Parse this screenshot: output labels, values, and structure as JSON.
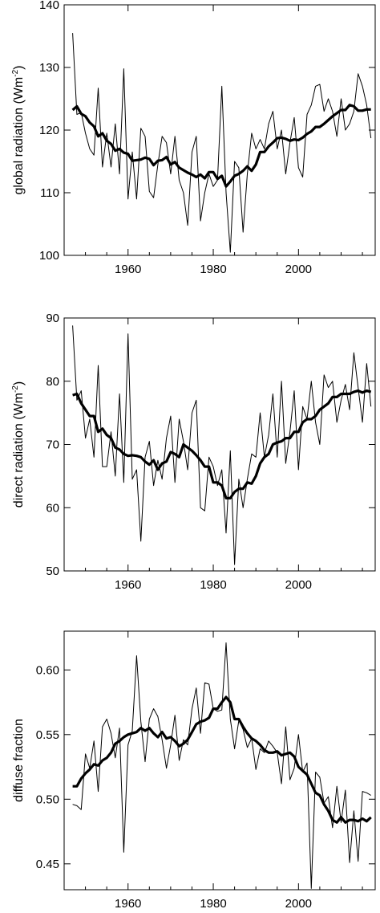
{
  "chart_data": [
    {
      "type": "line",
      "ylabel": "global radiation (Wm",
      "ylabel_sup": "-2",
      "ylabel_end": ")",
      "xlim": [
        1945,
        2018
      ],
      "ylim": [
        100,
        140
      ],
      "xticks": [
        1960,
        1980,
        2000
      ],
      "yticks": [
        100,
        110,
        120,
        130,
        140
      ],
      "grid": false,
      "series": [
        {
          "style": "thin",
          "x": [
            1947,
            1948,
            1949,
            1950,
            1951,
            1952,
            1953,
            1954,
            1955,
            1956,
            1957,
            1958,
            1959,
            1960,
            1961,
            1962,
            1963,
            1964,
            1965,
            1966,
            1967,
            1968,
            1969,
            1970,
            1971,
            1972,
            1973,
            1974,
            1975,
            1976,
            1977,
            1978,
            1979,
            1980,
            1981,
            1982,
            1983,
            1984,
            1985,
            1986,
            1987,
            1988,
            1989,
            1990,
            1991,
            1992,
            1993,
            1994,
            1995,
            1996,
            1997,
            1998,
            1999,
            2000,
            2001,
            2002,
            2003,
            2004,
            2005,
            2006,
            2007,
            2008,
            2009,
            2010,
            2011,
            2012,
            2013,
            2014,
            2015,
            2016,
            2017
          ],
          "y": [
            135.5,
            122.5,
            122.8,
            119.5,
            117.0,
            116.0,
            126.7,
            114.1,
            119.5,
            114.1,
            121.0,
            113.0,
            129.8,
            109.0,
            116.5,
            109.0,
            120.3,
            119.0,
            110.2,
            109.2,
            114.5,
            119.0,
            118.0,
            113.0,
            119.0,
            112.0,
            110.0,
            104.8,
            116.5,
            119.0,
            105.5,
            110.0,
            113.0,
            111.0,
            112.0,
            127.0,
            110.0,
            100.5,
            115.0,
            114.0,
            103.7,
            113.0,
            119.5,
            117.0,
            118.5,
            117.0,
            121.0,
            123.0,
            117.0,
            120.0,
            113.0,
            118.0,
            122.0,
            114.0,
            112.5,
            122.5,
            124.0,
            127.0,
            127.3,
            123.0,
            125.0,
            123.0,
            119.0,
            125.0,
            120.0,
            121.0,
            123.0,
            129.0,
            127.0,
            124.0,
            118.7
          ]
        },
        {
          "style": "thick",
          "x": [
            1947,
            1948,
            1949,
            1950,
            1951,
            1952,
            1953,
            1954,
            1955,
            1956,
            1957,
            1958,
            1959,
            1960,
            1961,
            1962,
            1963,
            1964,
            1965,
            1966,
            1967,
            1968,
            1969,
            1970,
            1971,
            1972,
            1973,
            1974,
            1975,
            1976,
            1977,
            1978,
            1979,
            1980,
            1981,
            1982,
            1983,
            1984,
            1985,
            1986,
            1987,
            1988,
            1989,
            1990,
            1991,
            1992,
            1993,
            1994,
            1995,
            1996,
            1997,
            1998,
            1999,
            2000,
            2001,
            2002,
            2003,
            2004,
            2005,
            2006,
            2007,
            2008,
            2009,
            2010,
            2011,
            2012,
            2013,
            2014,
            2015,
            2016,
            2017
          ],
          "y": [
            123.2,
            123.8,
            122.6,
            122.2,
            121.2,
            120.6,
            119.0,
            119.5,
            118.3,
            117.8,
            116.7,
            117.0,
            116.4,
            116.2,
            115.1,
            115.2,
            115.3,
            115.6,
            115.4,
            114.4,
            115.1,
            115.2,
            115.7,
            114.5,
            114.9,
            114.0,
            113.6,
            113.2,
            112.9,
            112.5,
            112.9,
            112.3,
            113.3,
            113.3,
            112.2,
            112.7,
            111.0,
            111.8,
            112.7,
            113.0,
            113.5,
            114.2,
            113.5,
            114.5,
            116.5,
            116.5,
            117.4,
            118.0,
            118.7,
            118.8,
            118.6,
            118.3,
            118.5,
            118.4,
            118.8,
            119.4,
            119.8,
            120.5,
            120.5,
            121.0,
            121.6,
            122.2,
            122.7,
            123.2,
            123.2,
            124.0,
            123.8,
            123.1,
            123.1,
            123.3,
            123.3
          ]
        }
      ]
    },
    {
      "type": "line",
      "ylabel": "direct radiation (Wm",
      "ylabel_sup": "-2",
      "ylabel_end": ")",
      "xlim": [
        1945,
        2018
      ],
      "ylim": [
        50,
        90
      ],
      "xticks": [
        1960,
        1980,
        2000
      ],
      "yticks": [
        50,
        60,
        70,
        80,
        90
      ],
      "grid": false,
      "series": [
        {
          "style": "thin",
          "x": [
            1947,
            1948,
            1949,
            1950,
            1951,
            1952,
            1953,
            1954,
            1955,
            1956,
            1957,
            1958,
            1959,
            1960,
            1961,
            1962,
            1963,
            1964,
            1965,
            1966,
            1967,
            1968,
            1969,
            1970,
            1971,
            1972,
            1973,
            1974,
            1975,
            1976,
            1977,
            1978,
            1979,
            1980,
            1981,
            1982,
            1983,
            1984,
            1985,
            1986,
            1987,
            1988,
            1989,
            1990,
            1991,
            1992,
            1993,
            1994,
            1995,
            1996,
            1997,
            1998,
            1999,
            2000,
            2001,
            2002,
            2003,
            2004,
            2005,
            2006,
            2007,
            2008,
            2009,
            2010,
            2011,
            2012,
            2013,
            2014,
            2015,
            2016,
            2017
          ],
          "y": [
            88.8,
            77.0,
            78.5,
            71.0,
            74.0,
            68.0,
            82.5,
            66.5,
            66.5,
            72.0,
            65.0,
            78.0,
            64.0,
            87.5,
            64.5,
            66.0,
            54.7,
            68.0,
            70.5,
            63.5,
            67.5,
            64.5,
            71.0,
            74.5,
            64.0,
            74.0,
            70.5,
            66.0,
            75.0,
            77.0,
            60.0,
            59.5,
            68.0,
            66.5,
            63.5,
            66.0,
            56.0,
            69.0,
            51.0,
            64.5,
            60.0,
            64.5,
            68.5,
            68.0,
            75.0,
            68.0,
            71.5,
            78.0,
            68.0,
            80.0,
            67.0,
            72.0,
            78.5,
            66.0,
            76.0,
            74.0,
            80.0,
            73.5,
            70.0,
            81.0,
            79.0,
            80.0,
            73.5,
            77.0,
            79.5,
            75.5,
            84.5,
            79.0,
            73.5,
            82.8,
            76.0
          ]
        },
        {
          "style": "thick",
          "x": [
            1947,
            1948,
            1949,
            1950,
            1951,
            1952,
            1953,
            1954,
            1955,
            1956,
            1957,
            1958,
            1959,
            1960,
            1961,
            1962,
            1963,
            1964,
            1965,
            1966,
            1967,
            1968,
            1969,
            1970,
            1971,
            1972,
            1973,
            1974,
            1975,
            1976,
            1977,
            1978,
            1979,
            1980,
            1981,
            1982,
            1983,
            1984,
            1985,
            1986,
            1987,
            1988,
            1989,
            1990,
            1991,
            1992,
            1993,
            1994,
            1995,
            1996,
            1997,
            1998,
            1999,
            2000,
            2001,
            2002,
            2003,
            2004,
            2005,
            2006,
            2007,
            2008,
            2009,
            2010,
            2011,
            2012,
            2013,
            2014,
            2015,
            2016,
            2017
          ],
          "y": [
            77.8,
            78.0,
            76.5,
            75.5,
            74.5,
            74.5,
            72.0,
            72.5,
            71.5,
            71.0,
            69.5,
            69.2,
            68.5,
            68.2,
            68.3,
            68.2,
            68.0,
            67.3,
            66.8,
            67.5,
            66.0,
            67.0,
            67.3,
            68.8,
            68.5,
            68.0,
            70.0,
            69.5,
            69.0,
            68.3,
            67.5,
            66.5,
            66.5,
            64.0,
            64.0,
            63.5,
            61.5,
            61.5,
            62.5,
            63.0,
            63.0,
            64.0,
            63.8,
            65.0,
            67.0,
            68.0,
            68.5,
            70.0,
            70.3,
            70.5,
            71.0,
            71.0,
            72.0,
            72.0,
            73.5,
            74.0,
            74.0,
            74.5,
            75.5,
            76.0,
            76.5,
            77.5,
            77.5,
            78.0,
            78.0,
            78.0,
            78.3,
            78.5,
            78.2,
            78.5,
            78.3
          ]
        }
      ]
    },
    {
      "type": "line",
      "ylabel": "diffuse fraction",
      "xlim": [
        1945,
        2018
      ],
      "ylim": [
        0.43,
        0.63
      ],
      "xticks": [
        1960,
        1980,
        2000
      ],
      "yticks": [
        0.45,
        0.5,
        0.55,
        0.6
      ],
      "ytick_labels": [
        "0.45",
        "0.50",
        "0.55",
        "0.60"
      ],
      "grid": false,
      "series": [
        {
          "style": "thin",
          "x": [
            1947,
            1948,
            1949,
            1950,
            1951,
            1952,
            1953,
            1954,
            1955,
            1956,
            1957,
            1958,
            1959,
            1960,
            1961,
            1962,
            1963,
            1964,
            1965,
            1966,
            1967,
            1968,
            1969,
            1970,
            1971,
            1972,
            1973,
            1974,
            1975,
            1976,
            1977,
            1978,
            1979,
            1980,
            1981,
            1982,
            1983,
            1984,
            1985,
            1986,
            1987,
            1988,
            1989,
            1990,
            1991,
            1992,
            1993,
            1994,
            1995,
            1996,
            1997,
            1998,
            1999,
            2000,
            2001,
            2002,
            2003,
            2004,
            2005,
            2006,
            2007,
            2008,
            2009,
            2010,
            2011,
            2012,
            2013,
            2014,
            2015,
            2016,
            2017
          ],
          "y": [
            0.496,
            0.495,
            0.492,
            0.535,
            0.524,
            0.545,
            0.506,
            0.556,
            0.562,
            0.551,
            0.532,
            0.555,
            0.459,
            0.542,
            0.553,
            0.611,
            0.56,
            0.529,
            0.562,
            0.57,
            0.564,
            0.546,
            0.524,
            0.542,
            0.565,
            0.53,
            0.546,
            0.542,
            0.57,
            0.586,
            0.551,
            0.59,
            0.589,
            0.57,
            0.568,
            0.569,
            0.621,
            0.562,
            0.539,
            0.561,
            0.554,
            0.54,
            0.547,
            0.523,
            0.539,
            0.536,
            0.545,
            0.541,
            0.536,
            0.512,
            0.556,
            0.515,
            0.524,
            0.55,
            0.521,
            0.528,
            0.431,
            0.521,
            0.517,
            0.497,
            0.502,
            0.478,
            0.51,
            0.482,
            0.507,
            0.451,
            0.491,
            0.452,
            0.506,
            0.505,
            0.503
          ]
        },
        {
          "style": "thick",
          "x": [
            1947,
            1948,
            1949,
            1950,
            1951,
            1952,
            1953,
            1954,
            1955,
            1956,
            1957,
            1958,
            1959,
            1960,
            1961,
            1962,
            1963,
            1964,
            1965,
            1966,
            1967,
            1968,
            1969,
            1970,
            1971,
            1972,
            1973,
            1974,
            1975,
            1976,
            1977,
            1978,
            1979,
            1980,
            1981,
            1982,
            1983,
            1984,
            1985,
            1986,
            1987,
            1988,
            1989,
            1990,
            1991,
            1992,
            1993,
            1994,
            1995,
            1996,
            1997,
            1998,
            1999,
            2000,
            2001,
            2002,
            2003,
            2004,
            2005,
            2006,
            2007,
            2008,
            2009,
            2010,
            2011,
            2012,
            2013,
            2014,
            2015,
            2016,
            2017
          ],
          "y": [
            0.51,
            0.51,
            0.516,
            0.52,
            0.523,
            0.527,
            0.526,
            0.53,
            0.532,
            0.536,
            0.543,
            0.545,
            0.548,
            0.55,
            0.551,
            0.552,
            0.555,
            0.553,
            0.555,
            0.551,
            0.548,
            0.552,
            0.547,
            0.548,
            0.545,
            0.541,
            0.543,
            0.546,
            0.552,
            0.558,
            0.56,
            0.561,
            0.563,
            0.57,
            0.57,
            0.575,
            0.579,
            0.575,
            0.562,
            0.562,
            0.556,
            0.551,
            0.547,
            0.545,
            0.542,
            0.538,
            0.536,
            0.536,
            0.537,
            0.534,
            0.535,
            0.536,
            0.533,
            0.525,
            0.522,
            0.519,
            0.512,
            0.505,
            0.503,
            0.496,
            0.491,
            0.484,
            0.482,
            0.486,
            0.482,
            0.484,
            0.484,
            0.483,
            0.485,
            0.483,
            0.486
          ]
        }
      ]
    }
  ]
}
